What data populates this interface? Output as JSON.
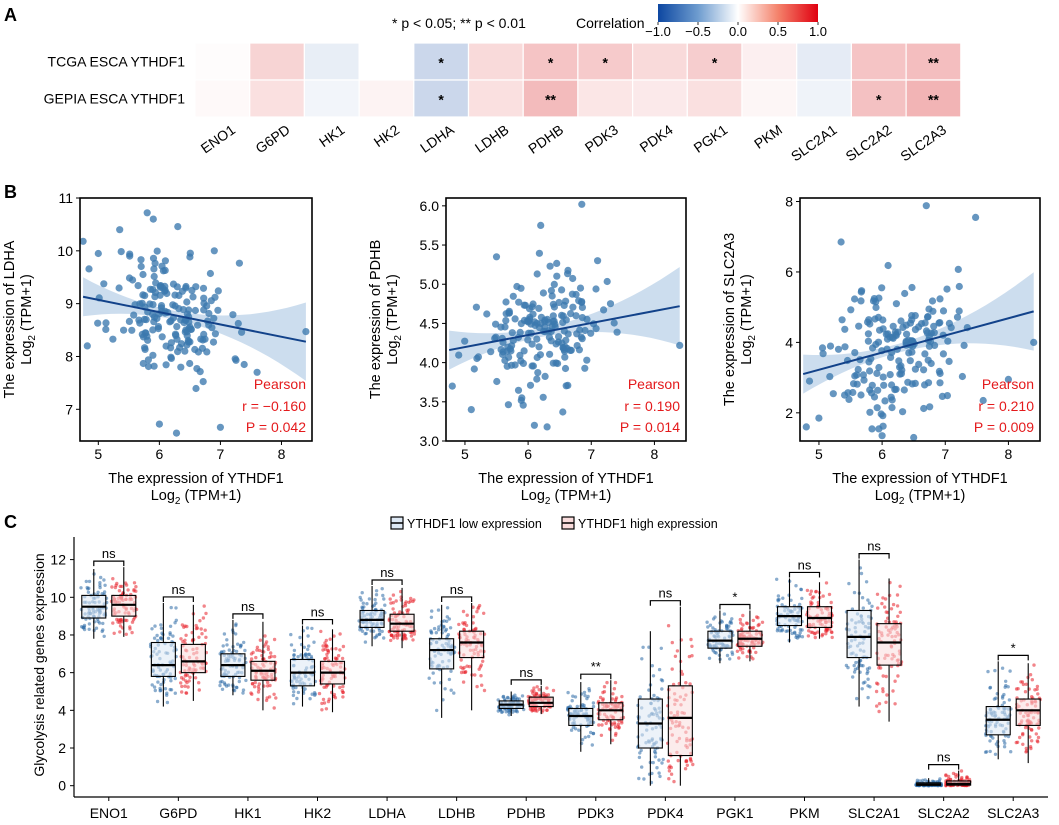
{
  "panel_labels": {
    "a": "A",
    "b": "B",
    "c": "C"
  },
  "colors": {
    "low": "#2c6aa6",
    "high": "#e8212a",
    "scatter_point": "#3b78ae",
    "fit_line": "#12428a",
    "ci_band": "#bfd5ea",
    "pearson": "#e41a1c",
    "neg": "#0d47a1",
    "mid": "#ffffff",
    "pos": "#d7191c"
  },
  "chart_data": [
    {
      "type": "heatmap",
      "panel": "A",
      "significance_note": "* p < 0.05; ** p < 0.01",
      "legend": {
        "title": "Correlation",
        "range": [
          -1.0,
          1.0
        ],
        "ticks": [
          "−1.0",
          "−0.5",
          "0.0",
          "0.5",
          "1.0"
        ],
        "tick_values": [
          -1.0,
          -0.5,
          0.0,
          0.5,
          1.0
        ]
      },
      "rows": [
        "TCGA ESCA YTHDF1",
        "GEPIA ESCA YTHDF1"
      ],
      "columns": [
        "ENO1",
        "G6PD",
        "HK1",
        "HK2",
        "LDHA",
        "LDHB",
        "PDHB",
        "PDK3",
        "PDK4",
        "PGK1",
        "PKM",
        "SLC2A1",
        "SLC2A2",
        "SLC2A3"
      ],
      "values": [
        [
          0.01,
          0.14,
          -0.07,
          0.0,
          -0.16,
          0.12,
          0.19,
          0.17,
          0.12,
          0.16,
          0.05,
          -0.08,
          0.19,
          0.21
        ],
        [
          0.02,
          0.1,
          -0.04,
          0.04,
          -0.16,
          0.1,
          0.22,
          0.08,
          0.07,
          0.1,
          0.03,
          -0.05,
          0.2,
          0.24
        ]
      ],
      "stars": [
        [
          "",
          "",
          "",
          "",
          "*",
          "",
          "*",
          "*",
          "",
          "*",
          "",
          "",
          "",
          "**"
        ],
        [
          "",
          "",
          "",
          "",
          "*",
          "",
          "**",
          "",
          "",
          "",
          "",
          "",
          "*",
          "**"
        ]
      ]
    },
    {
      "type": "scatter",
      "panel": "B",
      "xlabel_line1": "The expression of YTHDF1",
      "xlabel_line2_pre": "Log",
      "xlabel_line2_sub": "2",
      "xlabel_line2_post": " (TPM+1)",
      "xlim": [
        4.7,
        8.5
      ],
      "xticks": [
        5,
        6,
        7,
        8
      ],
      "ylabel_line1": "The expression of LDHA",
      "ylabel_line2_pre": "Log",
      "ylabel_line2_sub": "2",
      "ylabel_line2_post": " (TPM+1)",
      "ylim": [
        6.4,
        11.0
      ],
      "yticks": [
        7,
        8,
        9,
        10,
        11
      ],
      "fit": {
        "x": [
          4.75,
          8.4
        ],
        "y": [
          9.13,
          8.28
        ]
      },
      "stats": {
        "method": "Pearson",
        "r": "r = −0.160",
        "p": "P = 0.042"
      },
      "point_count": 180,
      "outliers": [
        [
          4.75,
          10.18
        ],
        [
          4.82,
          8.2
        ],
        [
          5.0,
          9.95
        ],
        [
          5.35,
          10.4
        ],
        [
          5.8,
          10.72
        ],
        [
          6.0,
          6.72
        ],
        [
          6.28,
          6.55
        ],
        [
          6.9,
          10.0
        ],
        [
          7.0,
          6.66
        ],
        [
          7.6,
          7.7
        ],
        [
          8.4,
          8.47
        ],
        [
          5.9,
          10.6
        ]
      ],
      "seed": 11,
      "x_center": 6.2,
      "x_spread": 0.48,
      "y_spread": 0.62
    },
    {
      "type": "scatter",
      "panel": "B",
      "xlabel_line1": "The expression of YTHDF1",
      "xlabel_line2_pre": "Log",
      "xlabel_line2_sub": "2",
      "xlabel_line2_post": " (TPM+1)",
      "xlim": [
        4.7,
        8.5
      ],
      "xticks": [
        5,
        6,
        7,
        8
      ],
      "ylabel_line1": "The expression of PDHB",
      "ylabel_line2_pre": "Log",
      "ylabel_line2_sub": "2",
      "ylabel_line2_post": " (TPM+1)",
      "ylim": [
        3.0,
        6.1
      ],
      "yticks": [
        3.0,
        3.5,
        4.0,
        4.5,
        5.0,
        5.5,
        6.0
      ],
      "ytick_labels": [
        "3.0",
        "3.5",
        "4.0",
        "4.5",
        "5.0",
        "5.5",
        "6.0"
      ],
      "fit": {
        "x": [
          4.75,
          8.4
        ],
        "y": [
          4.16,
          4.72
        ]
      },
      "stats": {
        "method": "Pearson",
        "r": "r = 0.190",
        "p": "P = 0.014"
      },
      "point_count": 180,
      "outliers": [
        [
          6.85,
          6.02
        ],
        [
          6.2,
          5.75
        ],
        [
          5.5,
          5.35
        ],
        [
          4.8,
          3.7
        ],
        [
          5.1,
          3.4
        ],
        [
          6.1,
          3.2
        ],
        [
          6.3,
          3.18
        ],
        [
          6.55,
          3.37
        ],
        [
          8.4,
          4.22
        ],
        [
          5.9,
          3.55
        ],
        [
          7.1,
          5.3
        ]
      ],
      "seed": 23,
      "x_center": 6.2,
      "x_spread": 0.48,
      "y_spread": 0.33
    },
    {
      "type": "scatter",
      "panel": "B",
      "xlabel_line1": "The expression of YTHDF1",
      "xlabel_line2_pre": "Log",
      "xlabel_line2_sub": "2",
      "xlabel_line2_post": " (TPM+1)",
      "xlim": [
        4.7,
        8.5
      ],
      "xticks": [
        5,
        6,
        7,
        8
      ],
      "ylabel_line1": "The expression of SLC2A3",
      "ylabel_line2_pre": "Log",
      "ylabel_line2_sub": "2",
      "ylabel_line2_post": " (TPM+1)",
      "ylim": [
        1.2,
        8.1
      ],
      "yticks": [
        2,
        4,
        6,
        8
      ],
      "fit": {
        "x": [
          4.75,
          8.4
        ],
        "y": [
          3.1,
          4.88
        ]
      },
      "stats": {
        "method": "Pearson",
        "r": "r = 0.210",
        "p": "P = 0.009"
      },
      "point_count": 180,
      "outliers": [
        [
          6.7,
          7.88
        ],
        [
          7.48,
          7.55
        ],
        [
          5.35,
          6.85
        ],
        [
          4.8,
          1.6
        ],
        [
          5.0,
          1.85
        ],
        [
          6.0,
          1.35
        ],
        [
          6.5,
          1.3
        ],
        [
          8.0,
          2.95
        ],
        [
          7.6,
          2.35
        ],
        [
          8.4,
          4.0
        ],
        [
          4.85,
          2.9
        ]
      ],
      "seed": 37,
      "x_center": 6.2,
      "x_spread": 0.48,
      "y_spread": 1.0
    },
    {
      "type": "box",
      "panel": "C",
      "ylabel": "Glycolysis related genes expression",
      "ylim": [
        -0.6,
        13.2
      ],
      "yticks": [
        0,
        2,
        4,
        6,
        8,
        10,
        12
      ],
      "legend": {
        "low": "YTHDF1 low expression",
        "high": "YTHDF1 high expression"
      },
      "categories": [
        "ENO1",
        "G6PD",
        "HK1",
        "HK2",
        "LDHA",
        "LDHB",
        "PDHB",
        "PDK3",
        "PDK4",
        "PGK1",
        "PKM",
        "SLC2A1",
        "SLC2A2",
        "SLC2A3"
      ],
      "significance": [
        "ns",
        "ns",
        "ns",
        "ns",
        "ns",
        "ns",
        "ns",
        "**",
        "ns",
        "*",
        "ns",
        "ns",
        "ns",
        "*"
      ],
      "low": [
        {
          "min": 7.8,
          "q1": 8.9,
          "median": 9.5,
          "q3": 10.1,
          "max": 11.5
        },
        {
          "min": 4.2,
          "q1": 5.8,
          "median": 6.4,
          "q3": 7.6,
          "max": 9.7
        },
        {
          "min": 4.8,
          "q1": 5.8,
          "median": 6.4,
          "q3": 7.0,
          "max": 8.8
        },
        {
          "min": 4.2,
          "q1": 5.3,
          "median": 6.0,
          "q3": 6.7,
          "max": 8.5
        },
        {
          "min": 7.4,
          "q1": 8.4,
          "median": 8.8,
          "q3": 9.3,
          "max": 10.6
        },
        {
          "min": 3.6,
          "q1": 6.2,
          "median": 7.2,
          "q3": 7.8,
          "max": 9.6
        },
        {
          "min": 3.7,
          "q1": 4.1,
          "median": 4.3,
          "q3": 4.5,
          "max": 5.0
        },
        {
          "min": 1.8,
          "q1": 3.2,
          "median": 3.7,
          "q3": 4.1,
          "max": 5.5
        },
        {
          "min": 0.0,
          "q1": 2.0,
          "median": 3.3,
          "q3": 4.6,
          "max": 8.2
        },
        {
          "min": 6.5,
          "q1": 7.3,
          "median": 7.7,
          "q3": 8.2,
          "max": 9.3
        },
        {
          "min": 7.6,
          "q1": 8.5,
          "median": 9.0,
          "q3": 9.5,
          "max": 11.0
        },
        {
          "min": 4.2,
          "q1": 6.8,
          "median": 7.9,
          "q3": 9.3,
          "max": 12.0
        },
        {
          "min": 0.0,
          "q1": 0.02,
          "median": 0.06,
          "q3": 0.15,
          "max": 0.4
        },
        {
          "min": 1.4,
          "q1": 2.7,
          "median": 3.5,
          "q3": 4.2,
          "max": 6.6
        }
      ],
      "high": [
        {
          "min": 7.9,
          "q1": 9.0,
          "median": 9.6,
          "q3": 10.1,
          "max": 11.6
        },
        {
          "min": 4.5,
          "q1": 6.0,
          "median": 6.6,
          "q3": 7.5,
          "max": 9.6
        },
        {
          "min": 4.0,
          "q1": 5.6,
          "median": 6.1,
          "q3": 6.6,
          "max": 8.7
        },
        {
          "min": 3.9,
          "q1": 5.4,
          "median": 6.0,
          "q3": 6.6,
          "max": 8.3
        },
        {
          "min": 7.3,
          "q1": 8.2,
          "median": 8.6,
          "q3": 9.1,
          "max": 10.5
        },
        {
          "min": 4.0,
          "q1": 6.8,
          "median": 7.6,
          "q3": 8.2,
          "max": 9.7
        },
        {
          "min": 3.8,
          "q1": 4.2,
          "median": 4.4,
          "q3": 4.7,
          "max": 5.3
        },
        {
          "min": 2.2,
          "q1": 3.5,
          "median": 4.0,
          "q3": 4.4,
          "max": 5.6
        },
        {
          "min": 0.0,
          "q1": 1.6,
          "median": 3.6,
          "q3": 5.3,
          "max": 9.5
        },
        {
          "min": 6.6,
          "q1": 7.4,
          "median": 7.8,
          "q3": 8.2,
          "max": 9.3
        },
        {
          "min": 7.8,
          "q1": 8.4,
          "median": 8.9,
          "q3": 9.5,
          "max": 10.8
        },
        {
          "min": 3.4,
          "q1": 6.4,
          "median": 7.6,
          "q3": 8.6,
          "max": 11.0
        },
        {
          "min": 0.0,
          "q1": 0.03,
          "median": 0.1,
          "q3": 0.25,
          "max": 0.8
        },
        {
          "min": 1.2,
          "q1": 3.2,
          "median": 4.0,
          "q3": 4.6,
          "max": 6.5
        }
      ]
    }
  ]
}
